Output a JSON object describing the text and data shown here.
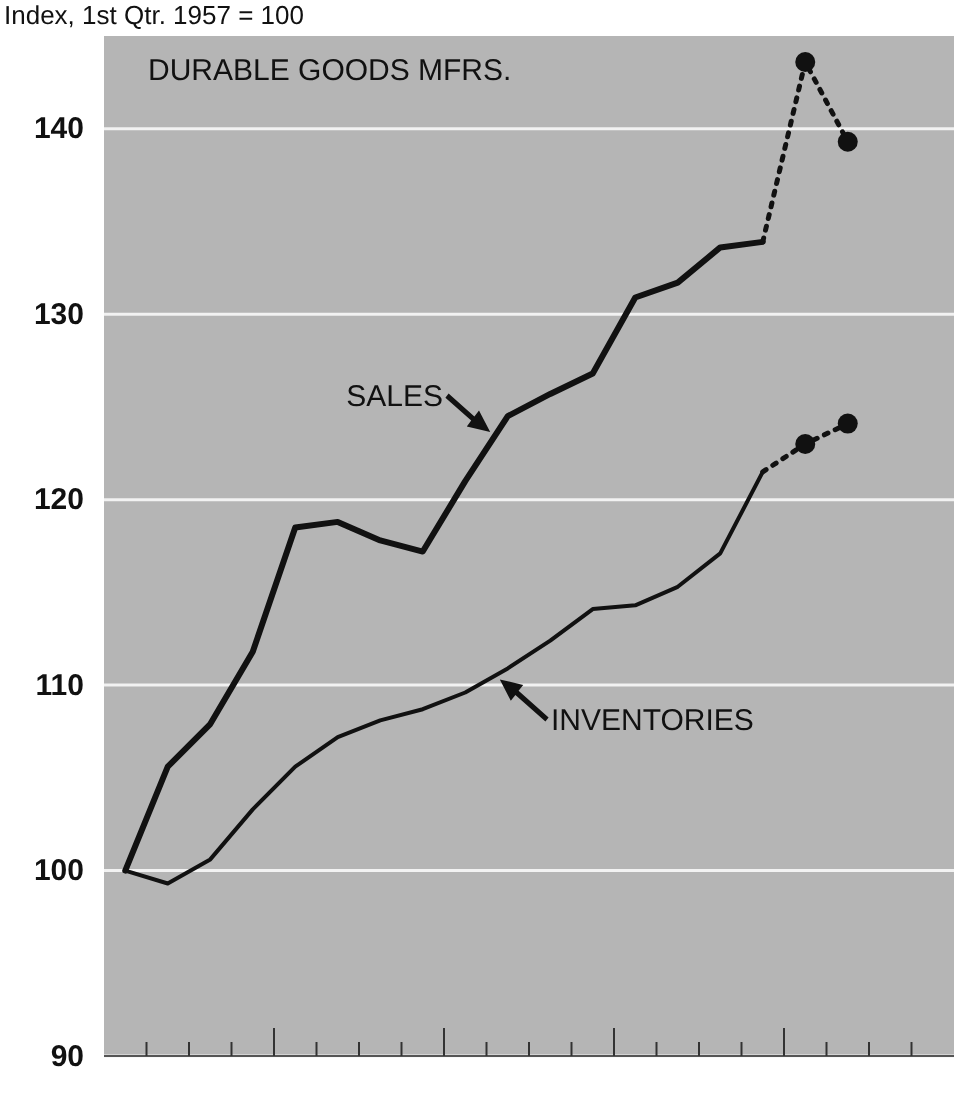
{
  "chart_data": {
    "type": "line",
    "title": "DURABLE GOODS MFRS.",
    "ylabel": "Index, 1st Qtr. 1957 = 100",
    "categories": [
      null,
      null,
      null,
      null,
      null,
      null,
      null,
      null,
      null,
      null,
      null,
      null,
      null,
      null,
      null,
      null,
      null,
      null,
      null,
      null
    ],
    "ylim": [
      90,
      145
    ],
    "yticks": [
      90,
      100,
      110,
      120,
      130,
      140
    ],
    "grid": "y",
    "tick_labels": "y",
    "series": [
      {
        "name": "SALES",
        "color": "#111111",
        "line_style": "solid",
        "marker": "none",
        "values": [
          100,
          105.6,
          107.9,
          111.8,
          118.5,
          118.8,
          117.8,
          117.2,
          121,
          124.5,
          125.7,
          126.8,
          130.9,
          131.7,
          133.6,
          133.9,
          null,
          null,
          null,
          null
        ]
      },
      {
        "color": "#111111",
        "line_style": "dotted",
        "marker": "circle",
        "values": [
          null,
          null,
          null,
          null,
          null,
          null,
          null,
          null,
          null,
          null,
          null,
          null,
          null,
          null,
          null,
          133.9,
          143.6,
          139.3,
          null,
          null
        ]
      },
      {
        "name": "INVENTORIES",
        "color": "#111111",
        "line_style": "solid",
        "marker": "none",
        "values": [
          100,
          99.3,
          100.6,
          103.3,
          105.6,
          107.2,
          108.1,
          108.7,
          109.6,
          110.9,
          112.4,
          114.1,
          114.3,
          115.3,
          117.1,
          121.5,
          null,
          null,
          null,
          null
        ]
      },
      {
        "color": "#111111",
        "line_style": "dotted",
        "marker": "circle",
        "values": [
          null,
          null,
          null,
          null,
          null,
          null,
          null,
          null,
          null,
          null,
          null,
          null,
          null,
          null,
          null,
          121.5,
          123,
          124.1,
          null,
          null
        ]
      }
    ]
  }
}
